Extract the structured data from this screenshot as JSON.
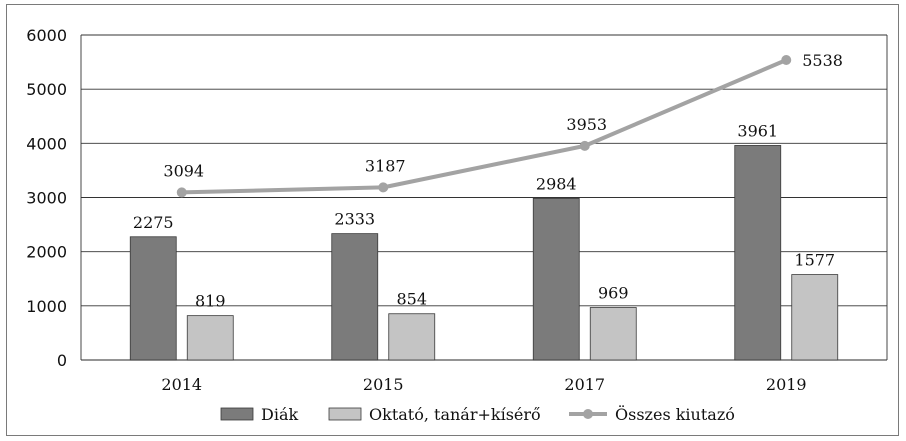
{
  "chart_data": {
    "type": "bar",
    "categories": [
      "2014",
      "2015",
      "2017",
      "2019"
    ],
    "series": [
      {
        "name": "Diák",
        "kind": "bar",
        "color": "#7b7b7b",
        "values": [
          2275,
          2333,
          2984,
          3961
        ]
      },
      {
        "name": "Oktató, tanár+kísérő",
        "kind": "bar",
        "color": "#c4c4c4",
        "values": [
          819,
          854,
          969,
          1577
        ]
      },
      {
        "name": "Összes kiutazó",
        "kind": "line",
        "color": "#a3a3a3",
        "values": [
          3094,
          3187,
          3953,
          5538
        ]
      }
    ],
    "ylim": [
      0,
      6000
    ],
    "yticks": [
      0,
      1000,
      2000,
      3000,
      4000,
      5000,
      6000
    ],
    "grid": true,
    "legend": "bottom",
    "data_labels": true
  }
}
